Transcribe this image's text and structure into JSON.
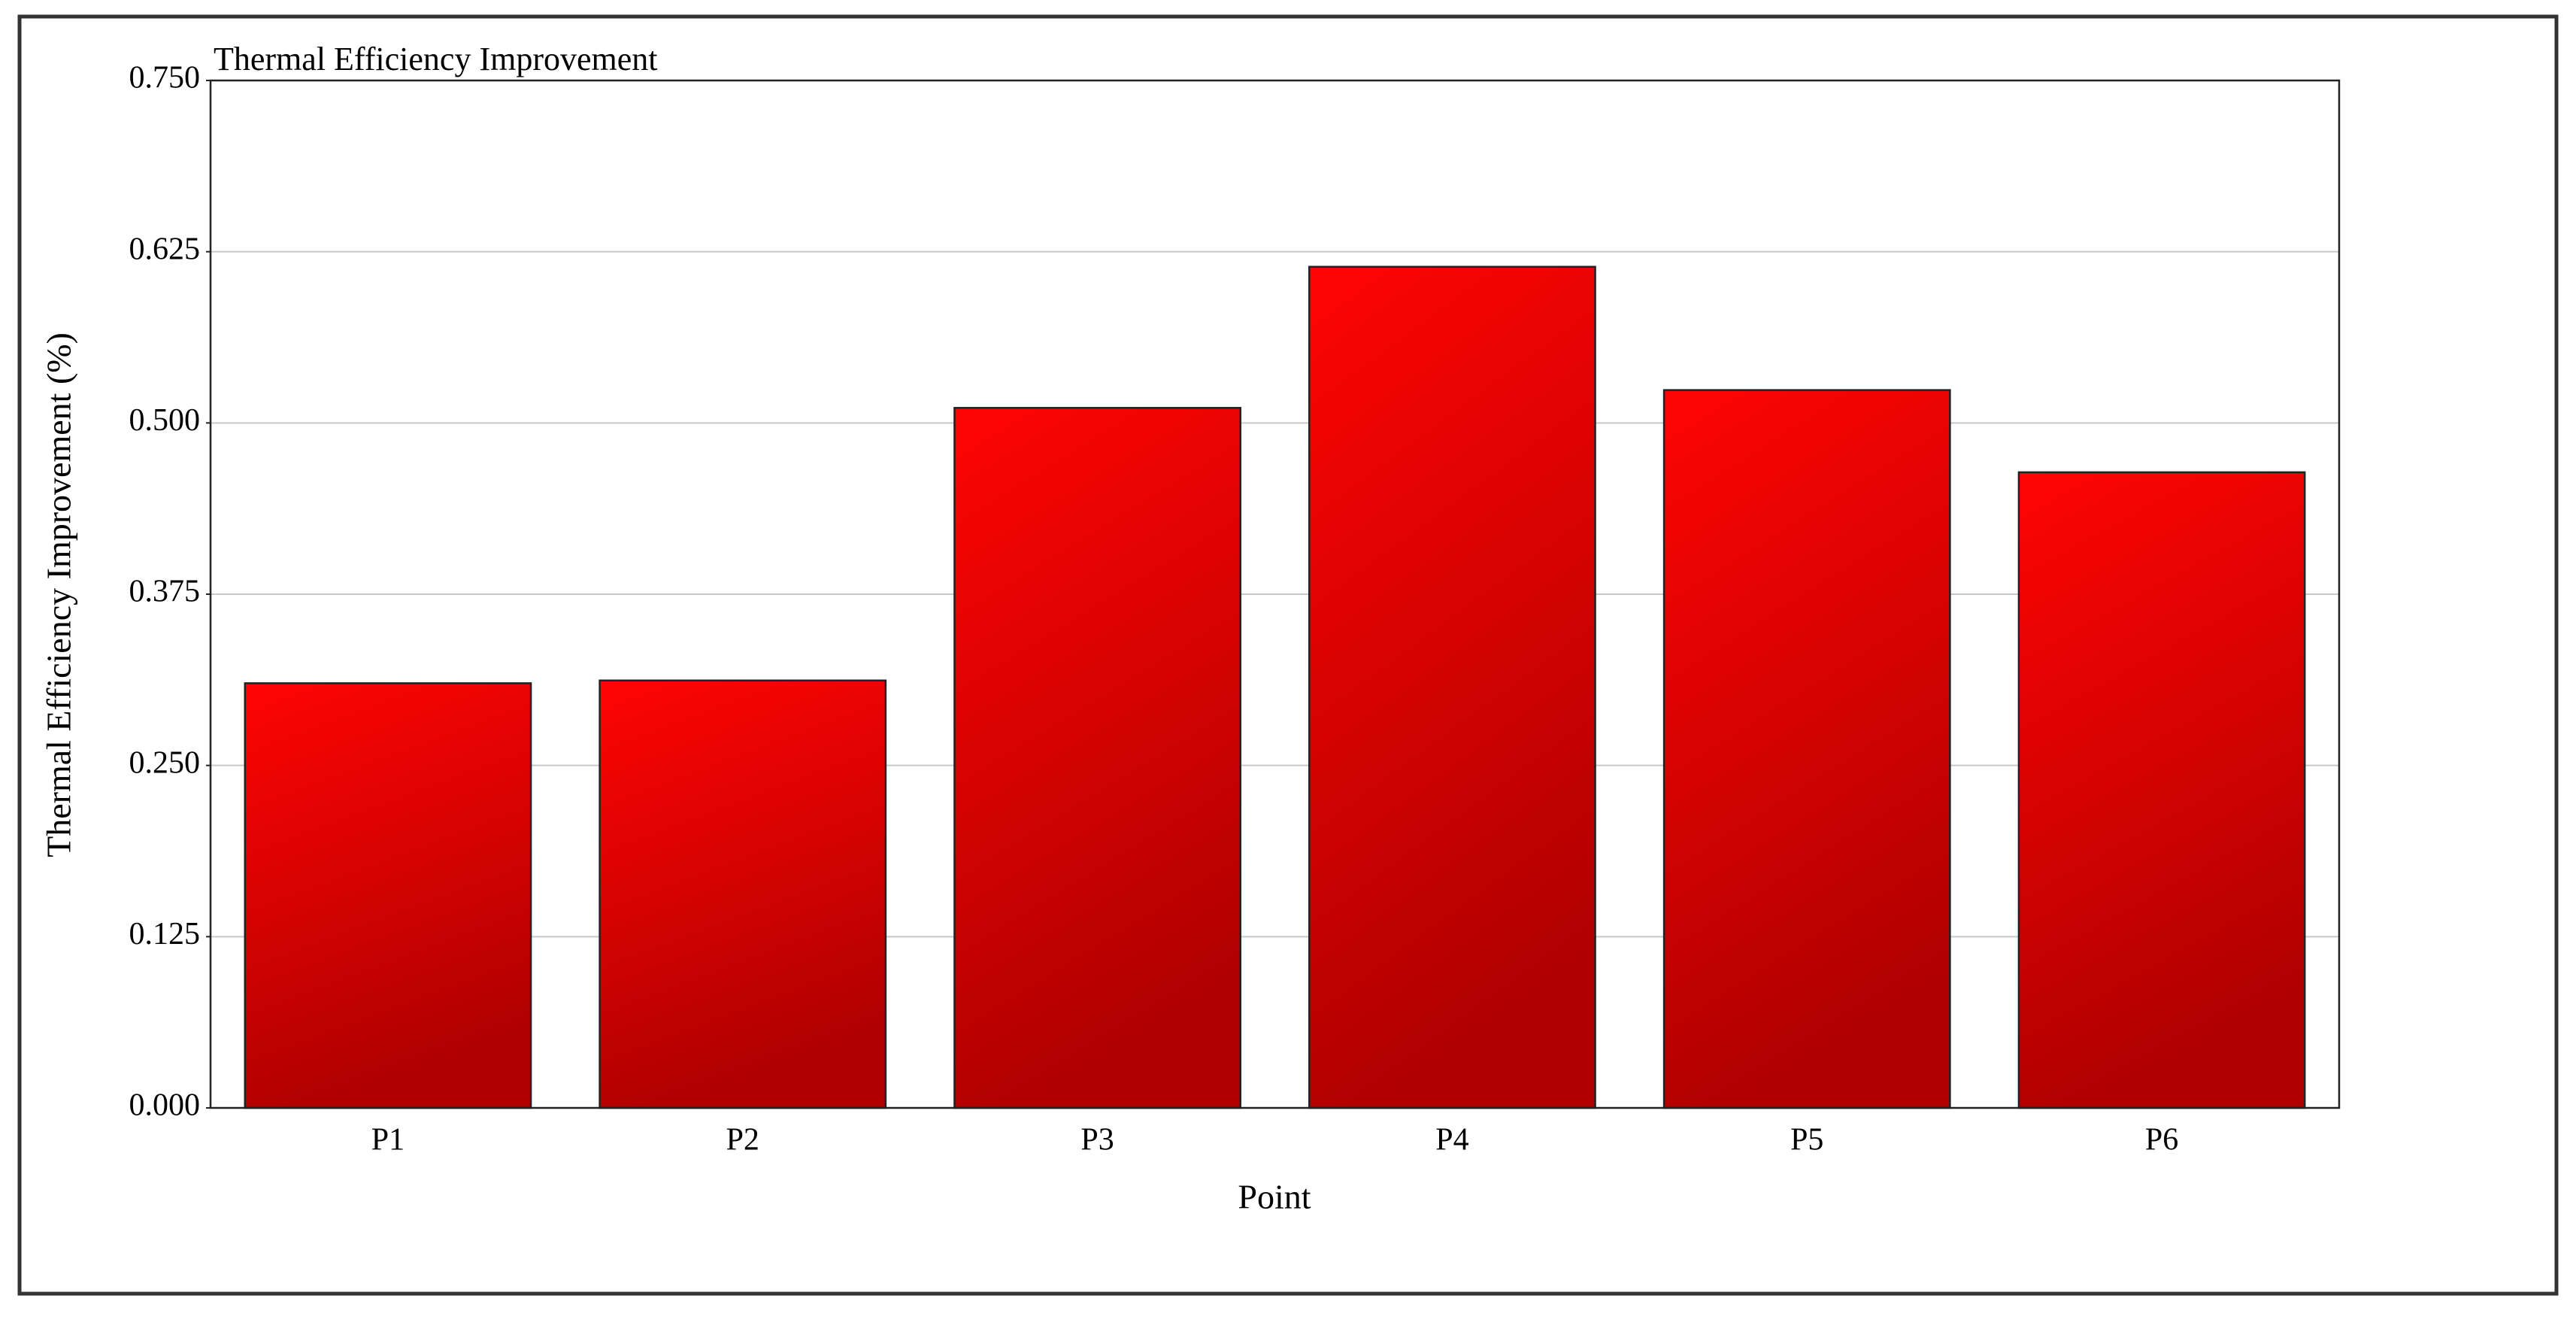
{
  "chart_data": {
    "type": "bar",
    "title": "Thermal Efficiency Improvement",
    "x_label": "Point",
    "y_label": "Thermal Efficiency Improvement (%)",
    "categories": [
      "P1",
      "P2",
      "P3",
      "P4",
      "P5",
      "P6"
    ],
    "values": [
      0.31,
      0.312,
      0.511,
      0.614,
      0.524,
      0.464
    ],
    "color": "#e00000",
    "ylim": [
      0,
      0.75
    ],
    "yticks": [
      {
        "value": 0,
        "label": "0.000"
      },
      0.125,
      {
        "value": 0.25,
        "label": "0.250"
      },
      0.375,
      {
        "value": 0.5,
        "label": "0.500"
      },
      0.625,
      {
        "value": 0.75,
        "label": "0.750"
      }
    ],
    "grid": true
  }
}
